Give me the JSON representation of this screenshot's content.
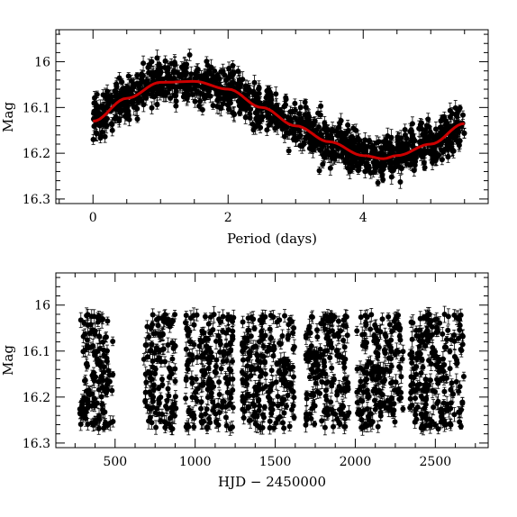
{
  "chart_data": [
    {
      "type": "scatter",
      "title": "",
      "xlabel": "Period (days)",
      "ylabel": "Mag",
      "xlim": [
        -0.55,
        5.85
      ],
      "ylim": [
        16.31,
        15.93
      ],
      "y_inverted": true,
      "xticks": [
        0,
        2,
        4
      ],
      "yticks": [
        16,
        16.1,
        16.2,
        16.3
      ],
      "ytick_labels": [
        "16",
        "16.1",
        "16.2",
        "16.3"
      ],
      "point_count_estimate": 1200,
      "marker": "filled circle with vertical error bars",
      "model_curve": {
        "color": "#cc0000",
        "x": [
          0,
          0.5,
          1.0,
          1.5,
          2.0,
          2.5,
          3.0,
          3.5,
          4.0,
          4.3,
          4.5,
          5.0,
          5.5
        ],
        "y": [
          16.13,
          16.08,
          16.045,
          16.043,
          16.06,
          16.1,
          16.14,
          16.175,
          16.205,
          16.212,
          16.205,
          16.18,
          16.135
        ]
      }
    },
    {
      "type": "scatter",
      "title": "",
      "xlabel": "HJD − 2450000",
      "ylabel": "Mag",
      "xlim": [
        130,
        2830
      ],
      "ylim": [
        16.31,
        15.93
      ],
      "y_inverted": true,
      "xticks": [
        500,
        1000,
        1500,
        2000,
        2500
      ],
      "yticks": [
        16,
        16.1,
        16.2,
        16.3
      ],
      "ytick_labels": [
        "16",
        "16.1",
        "16.2",
        "16.3"
      ],
      "observing_seasons": [
        [
          280,
          490
        ],
        [
          680,
          880
        ],
        [
          940,
          1240
        ],
        [
          1290,
          1620
        ],
        [
          1690,
          1960
        ],
        [
          2010,
          2300
        ],
        [
          2340,
          2680
        ]
      ],
      "marker": "filled circle with vertical error bars"
    }
  ]
}
